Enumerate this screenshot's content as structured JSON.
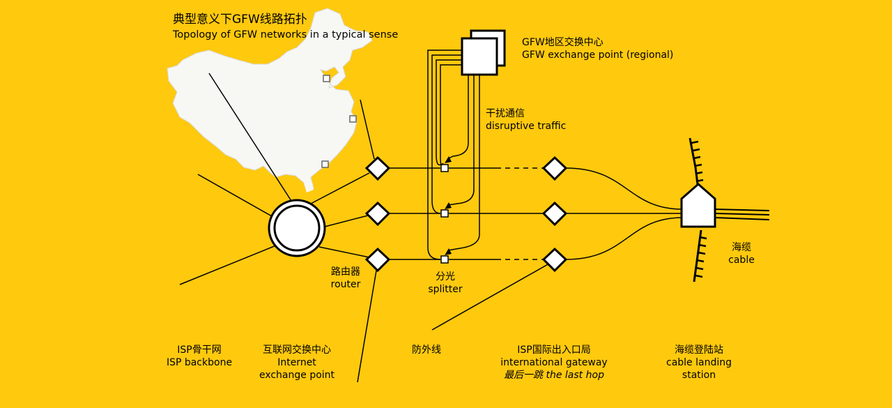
{
  "title": {
    "zh": "典型意义下GFW线路拓扑",
    "en": "Topology of GFW networks in a typical sense"
  },
  "labels": {
    "gfw_exchange": {
      "zh": "GFW地区交换中心",
      "en": "GFW exchange point (regional)"
    },
    "disruptive": {
      "zh": "干扰通信",
      "en": "disruptive traffic"
    },
    "router": {
      "zh": "路由器",
      "en": "router"
    },
    "splitter": {
      "zh": "分光",
      "en": "splitter"
    },
    "cable": {
      "zh": "海缆",
      "en": "cable"
    }
  },
  "bottom_labels": {
    "isp_backbone": {
      "zh": "ISP骨干网",
      "en": "ISP backbone"
    },
    "ixp": {
      "zh": "互联网交换中心",
      "en1": "Internet",
      "en2": "exchange point"
    },
    "firewall": {
      "zh": "防外线"
    },
    "gateway": {
      "zh": "ISP国际出入口局",
      "en": "international gateway",
      "last_hop": "最后一跳 the last hop"
    },
    "landing": {
      "zh": "海缆登陆站",
      "en1": "cable landing",
      "en2": "station"
    }
  },
  "colors": {
    "background": "#FFC90E",
    "map_fill": "#F7F7F4",
    "stroke": "#000000",
    "node_fill": "#FFFFFF"
  },
  "icons": [
    "china-map-icon",
    "router-icon",
    "splitter-icon",
    "gfw-server-icon",
    "cable-landing-station-icon",
    "cable-icon"
  ]
}
